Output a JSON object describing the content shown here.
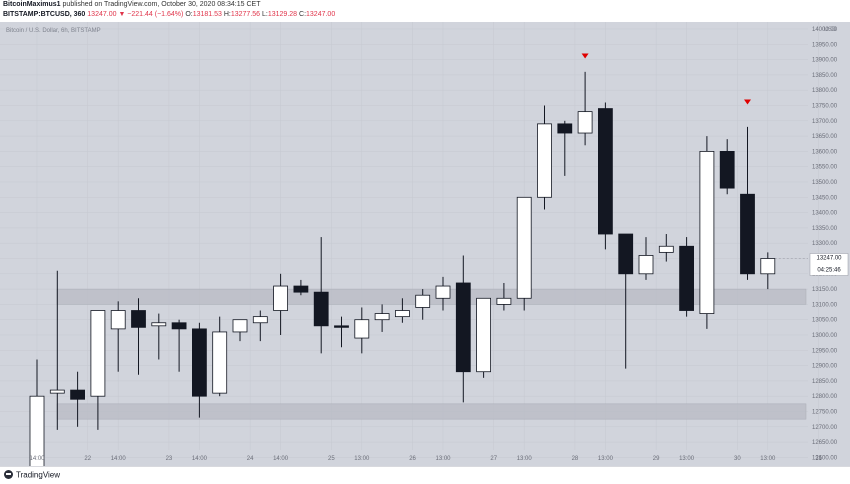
{
  "header": {
    "author": "BitcoinMaximus1",
    "published_text": "published on TradingView.com, October 30, 2020 08:34:15 CET",
    "symbol_line": "BITSTAMP:BTCUSD, 360",
    "last_price": "13247.00",
    "change": "▼ −221.44 (−1.64%)",
    "ohlc": {
      "o_label": "O:",
      "o_value": "13181.53",
      "h_label": "H:",
      "h_value": "13277.56",
      "l_label": "L:",
      "l_value": "13129.28",
      "c_label": "C:",
      "c_value": "13247.00"
    }
  },
  "chart_data": {
    "type": "candlestick",
    "title": "Bitcoin / U.S. Dollar, 6h, BITSTAMP",
    "currency_label": "USD",
    "y_ticks": [
      12600,
      12650,
      12700,
      12750,
      12800,
      12850,
      12900,
      12950,
      13000,
      13050,
      13100,
      13150,
      13200,
      13250,
      13300,
      13350,
      13400,
      13450,
      13500,
      13550,
      13600,
      13650,
      13700,
      13750,
      13800,
      13850,
      13900,
      13950,
      14000
    ],
    "x_ticks": [
      {
        "i": 0,
        "label": "14:00"
      },
      {
        "i": 2.5,
        "label": "22"
      },
      {
        "i": 4,
        "label": "14:00"
      },
      {
        "i": 6.5,
        "label": "23"
      },
      {
        "i": 8,
        "label": "14:00"
      },
      {
        "i": 10.5,
        "label": "24"
      },
      {
        "i": 12,
        "label": "14:00"
      },
      {
        "i": 14.5,
        "label": "25"
      },
      {
        "i": 16,
        "label": "13:00"
      },
      {
        "i": 18.5,
        "label": "26"
      },
      {
        "i": 20,
        "label": "13:00"
      },
      {
        "i": 22.5,
        "label": "27"
      },
      {
        "i": 24,
        "label": "13:00"
      },
      {
        "i": 26.5,
        "label": "28"
      },
      {
        "i": 28,
        "label": "13:00"
      },
      {
        "i": 30.5,
        "label": "29"
      },
      {
        "i": 32,
        "label": "13:00"
      },
      {
        "i": 34.5,
        "label": "30"
      },
      {
        "i": 36,
        "label": "13:00"
      },
      {
        "i": 38.5,
        "label": "31"
      }
    ],
    "current_price_label": "13247.00",
    "countdown_label": "04:25:46",
    "candles": [
      {
        "o": 12560,
        "h": 12920,
        "l": 12540,
        "c": 12800
      },
      {
        "o": 12810,
        "h": 13210,
        "l": 12690,
        "c": 12820
      },
      {
        "o": 12820,
        "h": 12880,
        "l": 12700,
        "c": 12790
      },
      {
        "o": 12800,
        "h": 13080,
        "l": 12690,
        "c": 13080
      },
      {
        "o": 13020,
        "h": 13110,
        "l": 12880,
        "c": 13080
      },
      {
        "o": 13080,
        "h": 13120,
        "l": 12870,
        "c": 13025
      },
      {
        "o": 13030,
        "h": 13070,
        "l": 12920,
        "c": 13040
      },
      {
        "o": 13040,
        "h": 13050,
        "l": 12880,
        "c": 13020
      },
      {
        "o": 13020,
        "h": 13040,
        "l": 12730,
        "c": 12800
      },
      {
        "o": 12810,
        "h": 13060,
        "l": 12800,
        "c": 13010
      },
      {
        "o": 13010,
        "h": 13050,
        "l": 12980,
        "c": 13050
      },
      {
        "o": 13040,
        "h": 13080,
        "l": 12980,
        "c": 13060
      },
      {
        "o": 13080,
        "h": 13200,
        "l": 13000,
        "c": 13160
      },
      {
        "o": 13160,
        "h": 13180,
        "l": 13130,
        "c": 13140
      },
      {
        "o": 13140,
        "h": 13320,
        "l": 12940,
        "c": 13030
      },
      {
        "o": 13030,
        "h": 13060,
        "l": 12960,
        "c": 13025
      },
      {
        "o": 12990,
        "h": 13090,
        "l": 12940,
        "c": 13050
      },
      {
        "o": 13050,
        "h": 13100,
        "l": 13010,
        "c": 13070
      },
      {
        "o": 13060,
        "h": 13120,
        "l": 13040,
        "c": 13080
      },
      {
        "o": 13090,
        "h": 13150,
        "l": 13050,
        "c": 13130
      },
      {
        "o": 13120,
        "h": 13190,
        "l": 13080,
        "c": 13160
      },
      {
        "o": 13170,
        "h": 13260,
        "l": 12780,
        "c": 12880
      },
      {
        "o": 12880,
        "h": 13120,
        "l": 12860,
        "c": 13120
      },
      {
        "o": 13100,
        "h": 13170,
        "l": 13080,
        "c": 13120
      },
      {
        "o": 13120,
        "h": 13450,
        "l": 13080,
        "c": 13450
      },
      {
        "o": 13450,
        "h": 13750,
        "l": 13410,
        "c": 13690
      },
      {
        "o": 13690,
        "h": 13700,
        "l": 13520,
        "c": 13660
      },
      {
        "o": 13660,
        "h": 13860,
        "l": 13620,
        "c": 13730
      },
      {
        "o": 13740,
        "h": 13760,
        "l": 13280,
        "c": 13330
      },
      {
        "o": 13330,
        "h": 13330,
        "l": 12890,
        "c": 13200
      },
      {
        "o": 13200,
        "h": 13320,
        "l": 13180,
        "c": 13260
      },
      {
        "o": 13270,
        "h": 13330,
        "l": 13240,
        "c": 13290
      },
      {
        "o": 13290,
        "h": 13320,
        "l": 13060,
        "c": 13080
      },
      {
        "o": 13070,
        "h": 13650,
        "l": 13020,
        "c": 13600
      },
      {
        "o": 13600,
        "h": 13640,
        "l": 13460,
        "c": 13480
      },
      {
        "o": 13460,
        "h": 13680,
        "l": 13180,
        "c": 13200
      },
      {
        "o": 13200,
        "h": 13270,
        "l": 13150,
        "c": 13250
      }
    ],
    "zones": [
      {
        "from": 13100,
        "to": 13150
      },
      {
        "from": 12725,
        "to": 12775
      }
    ],
    "markers": [
      {
        "i": 27,
        "price": 13910,
        "shape": "down-triangle",
        "color": "#e00000"
      },
      {
        "i": 35,
        "price": 13760,
        "shape": "down-triangle",
        "color": "#e00000"
      }
    ],
    "colors": {
      "background": "#d1d4dc",
      "up_body": "#ffffff",
      "down_body": "#131722",
      "wick": "#131722",
      "zone": "#b8bbc4",
      "marker": "#e00000"
    }
  },
  "footer": {
    "logo_text": "TradingView"
  }
}
